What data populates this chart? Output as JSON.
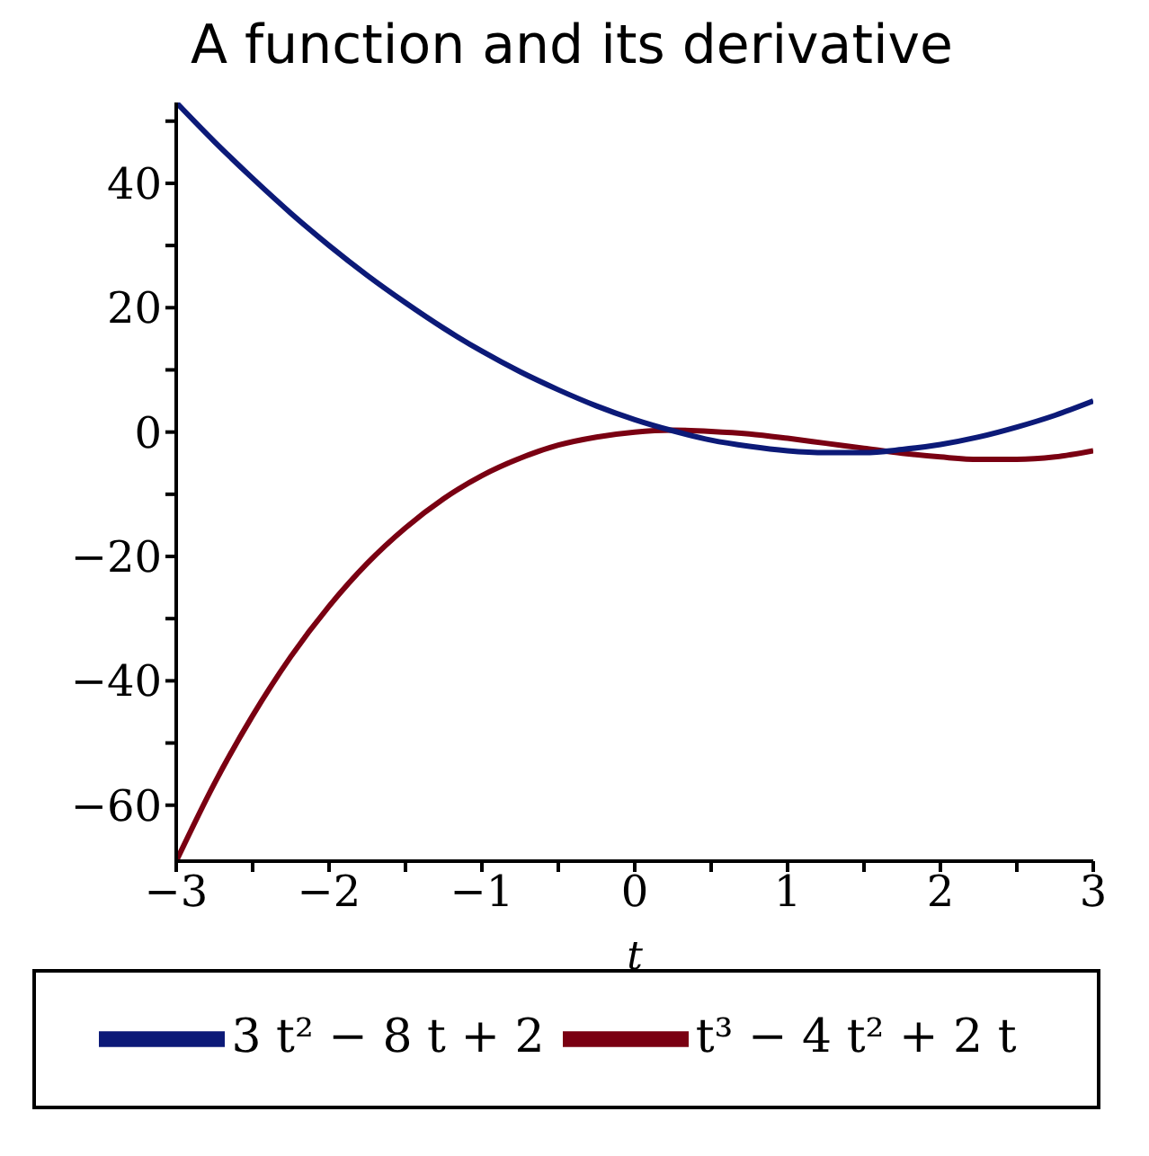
{
  "chart_data": {
    "type": "line",
    "title": "A function and its derivative",
    "xlabel": "t",
    "x": [
      -3,
      -2.75,
      -2.5,
      -2.25,
      -2,
      -1.75,
      -1.5,
      -1.25,
      -1,
      -0.75,
      -0.5,
      -0.25,
      0,
      0.25,
      0.5,
      0.75,
      1,
      1.25,
      1.5,
      1.75,
      2,
      2.25,
      2.5,
      2.75,
      3
    ],
    "series": [
      {
        "name": "t³ − 4 t² + 2 t",
        "color": "#7a0012",
        "values": [
          -69,
          -56.5,
          -45.6,
          -36.1,
          -28,
          -21.1,
          -15.4,
          -10.7,
          -7,
          -4.2,
          -2.1,
          -0.8,
          0,
          0.3,
          0.1,
          -0.3,
          -1,
          -1.8,
          -2.6,
          -3.4,
          -4,
          -4.4,
          -4.4,
          -4,
          -3
        ]
      },
      {
        "name": "3 t² − 8 t + 2",
        "color": "#0c1a78",
        "values": [
          53,
          46.7,
          40.8,
          35.2,
          30,
          25.2,
          20.8,
          16.7,
          13,
          9.7,
          6.8,
          4.2,
          2,
          0.2,
          -1.3,
          -2.3,
          -3,
          -3.3,
          -3.3,
          -2.8,
          -2,
          -0.8,
          0.8,
          2.7,
          5
        ]
      }
    ],
    "xlim": [
      -3,
      3
    ],
    "xticks": [
      -3,
      {
        "value": -2.5,
        "label": null
      },
      -2,
      {
        "value": -1.5,
        "label": null
      },
      -1,
      {
        "value": -0.5,
        "label": null
      },
      0,
      {
        "value": 0.5,
        "label": null
      },
      1,
      {
        "value": 1.5,
        "label": null
      },
      2,
      {
        "value": 2.5,
        "label": null
      },
      3
    ],
    "ylim": [
      -69,
      53
    ],
    "yticks": [
      {
        "value": -60,
        "label": "−60"
      },
      {
        "value": -50,
        "label": null
      },
      {
        "value": -40,
        "label": "−40"
      },
      {
        "value": -30,
        "label": null
      },
      {
        "value": -20,
        "label": "−20"
      },
      {
        "value": -10,
        "label": null
      },
      0,
      {
        "value": 10,
        "label": null
      },
      20,
      {
        "value": 30,
        "label": null
      },
      40,
      {
        "value": 50,
        "label": null
      }
    ],
    "legend": "bottom"
  }
}
